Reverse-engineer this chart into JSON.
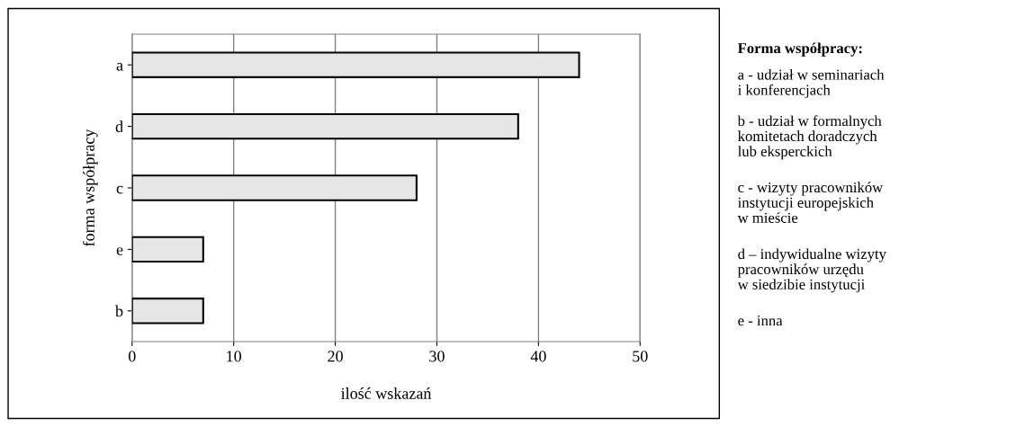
{
  "chart_data": {
    "type": "bar",
    "orientation": "horizontal",
    "categories": [
      "a",
      "d",
      "c",
      "e",
      "b"
    ],
    "values": [
      44,
      38,
      28,
      7,
      7
    ],
    "color": "#e6e6e6",
    "xlabel": "ilość wskazań",
    "ylabel": "forma współpracy",
    "xlim": [
      0,
      50
    ],
    "xticks": [
      0,
      10,
      20,
      30,
      40,
      50
    ],
    "grid": "x",
    "legend_title": "Forma współpracy:",
    "annotations": [
      "a - udział w seminariach\ni konferencjach",
      "b - udział w formalnych\nkomitetach doradczych\nlub eksperckich",
      "c - wizyty pracowników\ninstytucji europejskich\nw mieście",
      "d – indywidualne wizyty\npracowników urzędu\nw siedzibie instytucji",
      "e - inna"
    ]
  }
}
